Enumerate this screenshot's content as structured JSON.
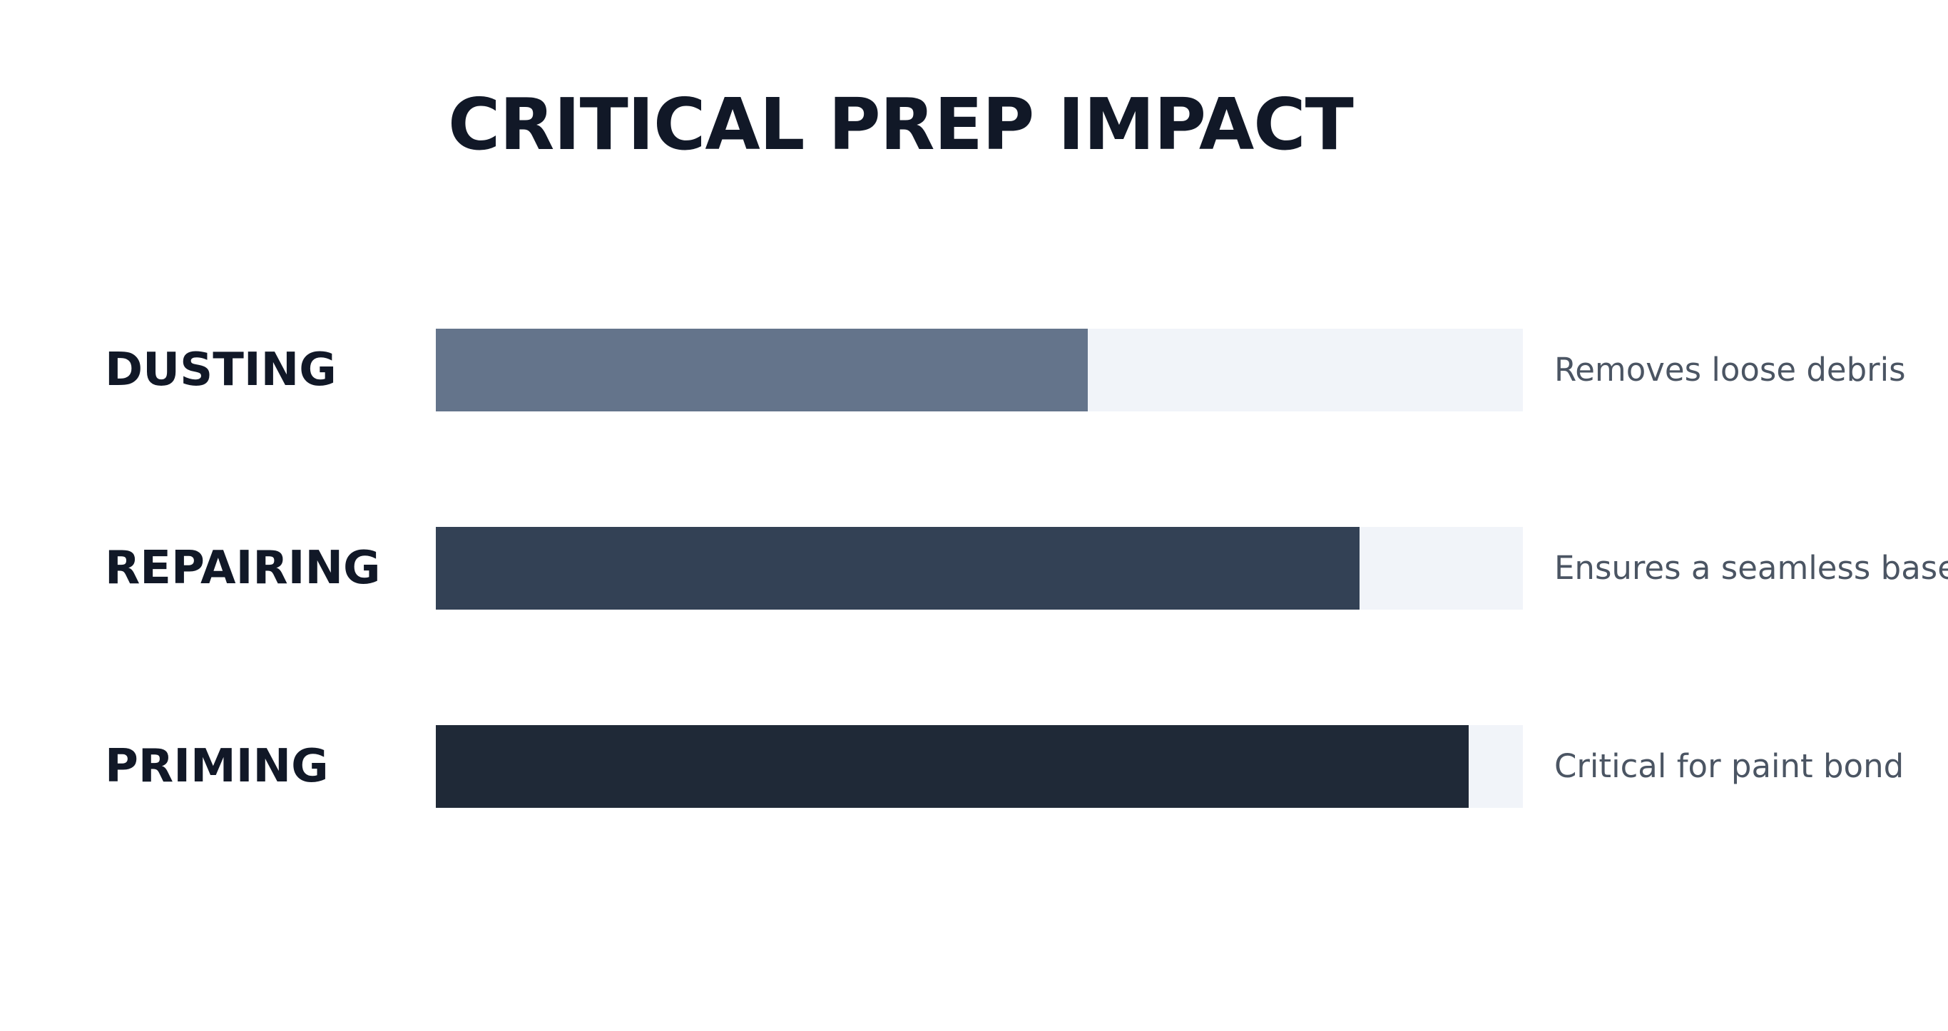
{
  "chart_data": {
    "type": "bar",
    "orientation": "horizontal",
    "title": "CRITICAL PREP IMPACT",
    "xlabel": "",
    "ylabel": "",
    "xlim": [
      0,
      100
    ],
    "grid": false,
    "categories": [
      "DUSTING",
      "REPAIRING",
      "PRIMING"
    ],
    "values": [
      60,
      85,
      95
    ],
    "annotations": [
      "Removes loose debris",
      "Ensures a seamless base",
      "Critical for paint bond"
    ],
    "colors": [
      "#64748b",
      "#334155",
      "#1f2937"
    ],
    "track_color": "#f1f4f9"
  }
}
